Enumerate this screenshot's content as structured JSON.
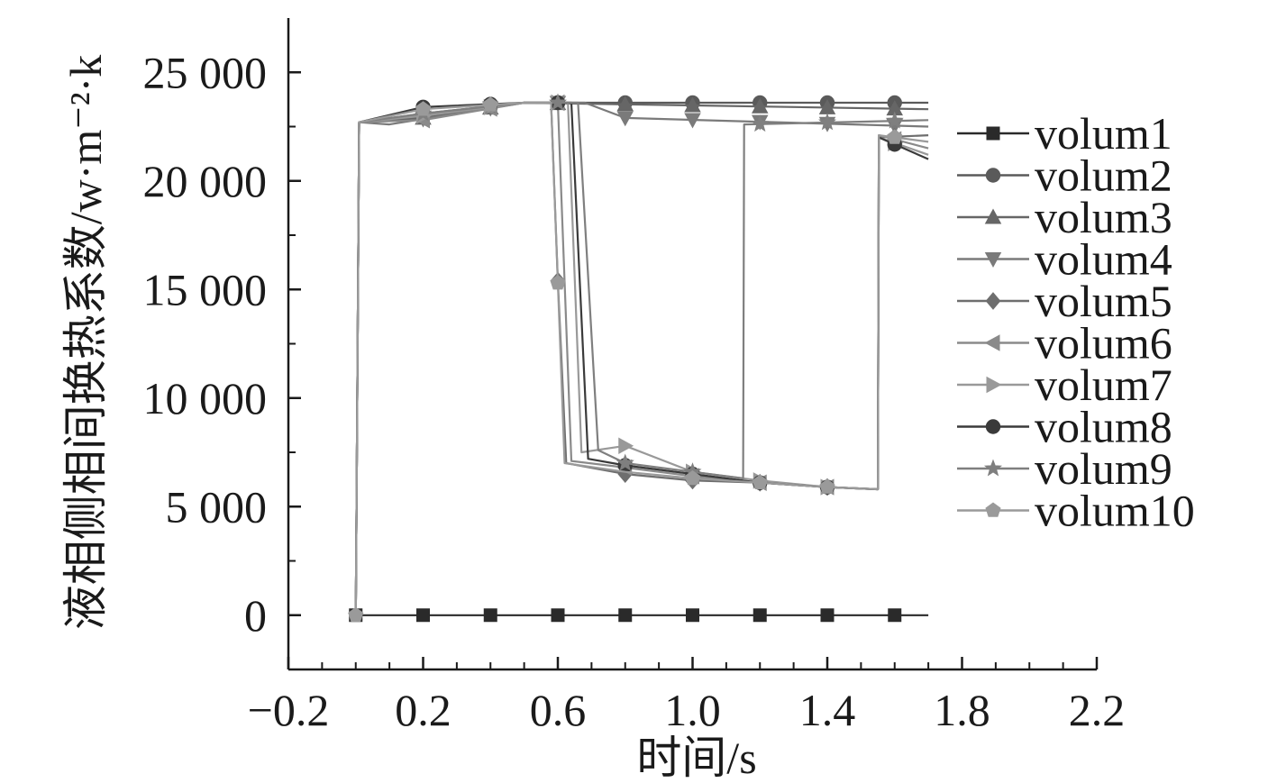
{
  "chart_data": {
    "type": "line",
    "title": "",
    "xlabel": "时间/s",
    "ylabel": "液相侧相间换热系数/w·m⁻²·k",
    "xlim": [
      -0.2,
      2.2
    ],
    "ylim": [
      -2500,
      27500
    ],
    "x_ticks": [
      -0.2,
      0.2,
      0.6,
      1.0,
      1.4,
      1.8,
      2.2
    ],
    "x_tick_labels": [
      "−0.2",
      "0.2",
      "0.6",
      "1.0",
      "1.4",
      "1.8",
      "2.2"
    ],
    "y_ticks": [
      0,
      5000,
      10000,
      15000,
      20000,
      25000
    ],
    "y_tick_labels": [
      "0",
      "5 000",
      "10 000",
      "15 000",
      "20 000",
      "25 000"
    ],
    "grid": false,
    "legend_position": "right",
    "series": [
      {
        "name": "volum1",
        "marker": "square",
        "color": "#2a2a2a",
        "points": [
          [
            0,
            0
          ],
          [
            1.7,
            0
          ]
        ],
        "marker_x": [
          0,
          0.2,
          0.4,
          0.6,
          0.8,
          1.0,
          1.2,
          1.4,
          1.6
        ]
      },
      {
        "name": "volum2",
        "marker": "circle",
        "color": "#5a5a5a",
        "points": [
          [
            0,
            0
          ],
          [
            0.01,
            22700
          ],
          [
            0.2,
            23000
          ],
          [
            0.5,
            23600
          ],
          [
            1.7,
            23600
          ]
        ],
        "marker_x": [
          0.2,
          0.4,
          0.6,
          0.8,
          1.0,
          1.2,
          1.4,
          1.6
        ]
      },
      {
        "name": "volum3",
        "marker": "triangle-up",
        "color": "#666666",
        "points": [
          [
            0,
            0
          ],
          [
            0.01,
            22700
          ],
          [
            0.2,
            22900
          ],
          [
            0.5,
            23600
          ],
          [
            1.7,
            23300
          ]
        ],
        "marker_x": [
          0.2,
          0.4,
          0.6,
          0.8,
          1.0,
          1.2,
          1.4,
          1.6
        ]
      },
      {
        "name": "volum4",
        "marker": "triangle-down",
        "color": "#7a7a7a",
        "points": [
          [
            0,
            0
          ],
          [
            0.01,
            22700
          ],
          [
            0.1,
            22600
          ],
          [
            0.5,
            23600
          ],
          [
            0.68,
            23600
          ],
          [
            0.8,
            22900
          ],
          [
            1.7,
            22500
          ]
        ],
        "marker_x": [
          0.2,
          0.4,
          0.6,
          0.8,
          1.0,
          1.2,
          1.4,
          1.6
        ]
      },
      {
        "name": "volum5",
        "marker": "diamond",
        "color": "#6e6e6e",
        "points": [
          [
            0,
            0
          ],
          [
            0.01,
            22700
          ],
          [
            0.2,
            23100
          ],
          [
            0.5,
            23600
          ],
          [
            0.58,
            23600
          ],
          [
            0.6,
            15400
          ],
          [
            0.625,
            7000
          ],
          [
            0.8,
            6500
          ],
          [
            1.0,
            6200
          ],
          [
            1.2,
            6100
          ],
          [
            1.4,
            5900
          ],
          [
            1.55,
            5800
          ],
          [
            1.553,
            22000
          ],
          [
            1.7,
            22100
          ]
        ],
        "marker_x": [
          0.2,
          0.4,
          0.6,
          0.8,
          1.0,
          1.2,
          1.4,
          1.6
        ]
      },
      {
        "name": "volum6",
        "marker": "triangle-left",
        "color": "#8a8a8a",
        "points": [
          [
            0,
            0
          ],
          [
            0.01,
            22700
          ],
          [
            0.2,
            22800
          ],
          [
            0.5,
            23600
          ],
          [
            0.6,
            23600
          ],
          [
            0.64,
            7100
          ],
          [
            0.8,
            6800
          ],
          [
            1.0,
            6400
          ],
          [
            1.2,
            6100
          ],
          [
            1.4,
            5900
          ],
          [
            1.55,
            5800
          ],
          [
            1.553,
            22100
          ],
          [
            1.7,
            21500
          ]
        ],
        "marker_x": [
          0.2,
          0.4,
          0.6,
          0.8,
          1.0,
          1.2,
          1.4,
          1.6
        ]
      },
      {
        "name": "volum7",
        "marker": "triangle-right",
        "color": "#999999",
        "points": [
          [
            0,
            0
          ],
          [
            0.01,
            22700
          ],
          [
            0.2,
            23000
          ],
          [
            0.5,
            23600
          ],
          [
            0.63,
            23600
          ],
          [
            0.67,
            7500
          ],
          [
            0.8,
            7800
          ],
          [
            1.0,
            6600
          ],
          [
            1.2,
            6200
          ],
          [
            1.4,
            5900
          ],
          [
            1.55,
            5800
          ],
          [
            1.553,
            22000
          ],
          [
            1.7,
            21200
          ]
        ],
        "marker_x": [
          0.2,
          0.4,
          0.6,
          0.8,
          1.0,
          1.2,
          1.4,
          1.6
        ]
      },
      {
        "name": "volum8",
        "marker": "circle",
        "color": "#3a3a3a",
        "points": [
          [
            0,
            0
          ],
          [
            0.01,
            22700
          ],
          [
            0.2,
            23400
          ],
          [
            0.5,
            23600
          ],
          [
            0.64,
            23600
          ],
          [
            0.69,
            7200
          ],
          [
            0.8,
            6900
          ],
          [
            1.0,
            6500
          ],
          [
            1.2,
            6100
          ],
          [
            1.4,
            5900
          ],
          [
            1.55,
            5800
          ],
          [
            1.553,
            22000
          ],
          [
            1.7,
            21000
          ]
        ],
        "marker_x": [
          0.2,
          0.4,
          0.6,
          0.8,
          1.0,
          1.2,
          1.4,
          1.6
        ]
      },
      {
        "name": "volum9",
        "marker": "star",
        "color": "#7f7f7f",
        "points": [
          [
            0,
            0
          ],
          [
            0.01,
            22700
          ],
          [
            0.2,
            23100
          ],
          [
            0.5,
            23600
          ],
          [
            0.66,
            23600
          ],
          [
            0.72,
            7600
          ],
          [
            0.8,
            7000
          ],
          [
            1.0,
            6600
          ],
          [
            1.15,
            6300
          ],
          [
            1.153,
            22600
          ],
          [
            1.7,
            22800
          ]
        ],
        "marker_x": [
          0.2,
          0.4,
          0.6,
          0.8,
          1.0,
          1.2,
          1.4,
          1.6
        ]
      },
      {
        "name": "volum10",
        "marker": "pentagon",
        "color": "#9a9a9a",
        "points": [
          [
            0,
            0
          ],
          [
            0.01,
            22700
          ],
          [
            0.2,
            23300
          ],
          [
            0.5,
            23600
          ],
          [
            0.58,
            23600
          ],
          [
            0.62,
            7000
          ],
          [
            0.8,
            6600
          ],
          [
            1.0,
            6300
          ],
          [
            1.2,
            6100
          ],
          [
            1.4,
            5900
          ],
          [
            1.55,
            5800
          ],
          [
            1.553,
            22100
          ],
          [
            1.7,
            21800
          ]
        ],
        "marker_x": [
          0,
          0.2,
          0.4,
          0.6,
          1.0,
          1.2,
          1.4,
          1.6
        ]
      }
    ]
  }
}
